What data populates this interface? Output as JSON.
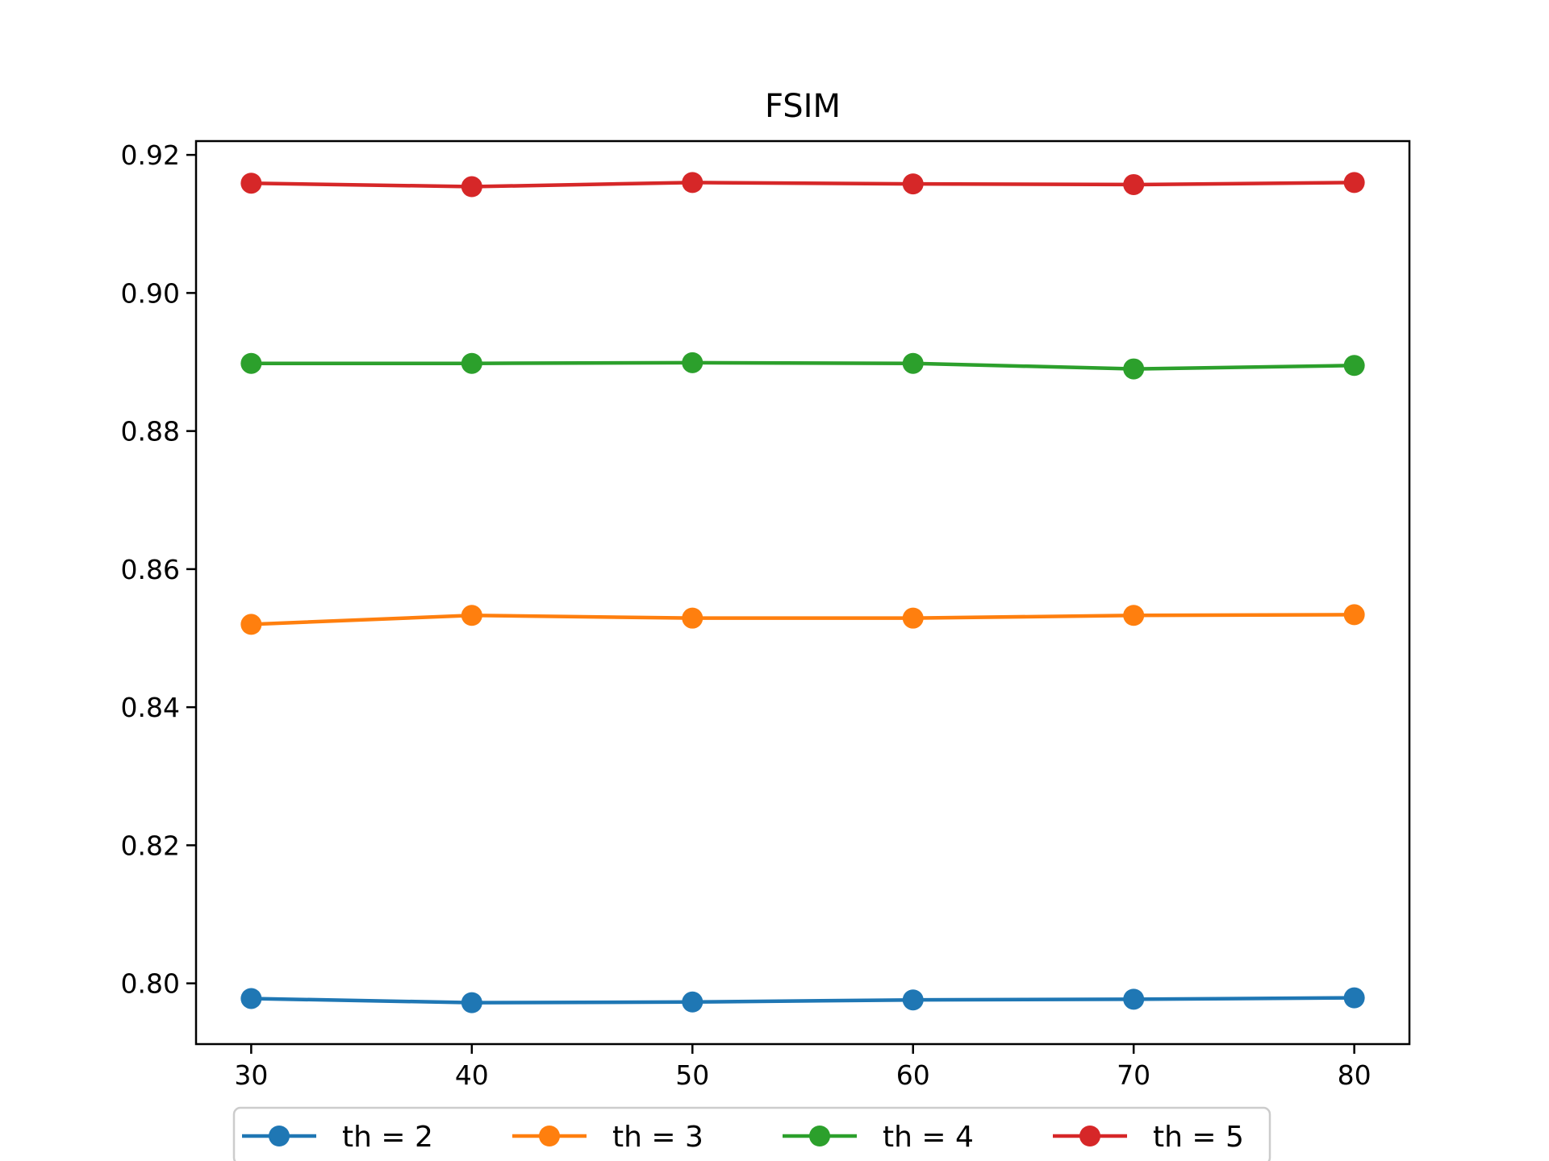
{
  "chart_data": {
    "type": "line",
    "title": "FSIM",
    "xlabel": "",
    "ylabel": "",
    "x": [
      30,
      40,
      50,
      60,
      70,
      80
    ],
    "xticks": [
      "30",
      "40",
      "50",
      "60",
      "70",
      "80"
    ],
    "yticks": [
      "0.80",
      "0.82",
      "0.84",
      "0.86",
      "0.88",
      "0.90",
      "0.92"
    ],
    "xlim": [
      27.5,
      82.5
    ],
    "ylim": [
      0.7912,
      0.922
    ],
    "grid": false,
    "legend_position": "bottom-center",
    "series": [
      {
        "name": "th = 2",
        "color": "#1f77b4",
        "values": [
          0.7978,
          0.7972,
          0.7973,
          0.7976,
          0.7977,
          0.7979
        ]
      },
      {
        "name": "th = 3",
        "color": "#ff7f0e",
        "values": [
          0.852,
          0.8533,
          0.8529,
          0.8529,
          0.8533,
          0.8534
        ]
      },
      {
        "name": "th = 4",
        "color": "#2ca02c",
        "values": [
          0.8898,
          0.8898,
          0.8899,
          0.8898,
          0.889,
          0.8895
        ]
      },
      {
        "name": "th = 5",
        "color": "#d62728",
        "values": [
          0.9159,
          0.9154,
          0.916,
          0.9158,
          0.9157,
          0.916
        ]
      }
    ]
  }
}
